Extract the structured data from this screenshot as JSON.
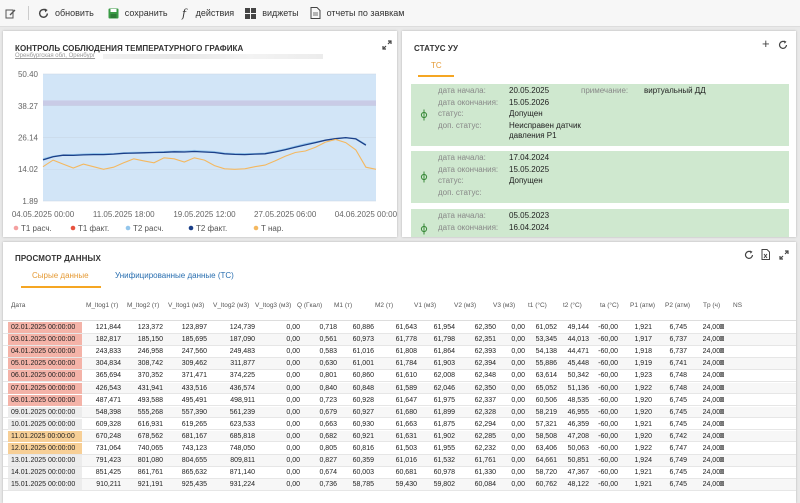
{
  "toolbar": {
    "items": [
      {
        "icon": "refresh-icon",
        "label": "обновить"
      },
      {
        "icon": "save-icon",
        "label": "сохранить"
      },
      {
        "icon": "function-icon",
        "label": "действия"
      },
      {
        "icon": "widgets-icon",
        "label": "виджеты"
      },
      {
        "icon": "report-icon",
        "label": "отчеты по заявкам"
      }
    ]
  },
  "chart_panel": {
    "title": "КОНТРОЛЬ СОБЛЮДЕНИЯ ТЕМПЕРАТУРНОГО ГРАФИКА",
    "subtitle": "Оренбургская обл, Оренбург"
  },
  "chart_data": {
    "type": "line",
    "title": "КОНТРОЛЬ СОБЛЮДЕНИЯ ТЕМПЕРАТУРНОГО ГРАФИКА",
    "y_ticks": [
      "50.40",
      "38.27",
      "26.14",
      "14.02",
      "1.89"
    ],
    "ylim": [
      1.89,
      50.4
    ],
    "x_ticks": [
      "04.05.2025 00:00",
      "11.05.2025 18:00",
      "19.05.2025 12:00",
      "27.05.2025 06:00",
      "04.06.2025 00:00"
    ],
    "x_range": [
      "04.05.2025 00:00",
      "06.06.2025 00:00"
    ],
    "band": [
      38.3,
      40.3
    ],
    "legend_placement": "bottom",
    "series": [
      {
        "name": "T1 расч.",
        "color": "#f4a0a0",
        "points": []
      },
      {
        "name": "T1 факт.",
        "color": "#e8533f",
        "points": []
      },
      {
        "name": "T2 расч.",
        "color": "#93c6ec",
        "points": [
          [
            0,
            18
          ],
          [
            1,
            19
          ],
          [
            2,
            19.5
          ],
          [
            3,
            19.6
          ],
          [
            4,
            19.8
          ],
          [
            5,
            20
          ],
          [
            6,
            20
          ],
          [
            7,
            20
          ],
          [
            8,
            20.3
          ],
          [
            9,
            20.5
          ],
          [
            10,
            20.5
          ],
          [
            11,
            20.6
          ],
          [
            12,
            20.8
          ],
          [
            13,
            21
          ],
          [
            14,
            21
          ],
          [
            15,
            21.2
          ],
          [
            16,
            21
          ],
          [
            17,
            20.8
          ],
          [
            18,
            20.2
          ],
          [
            19,
            20
          ],
          [
            20,
            20
          ],
          [
            21,
            20
          ],
          [
            22,
            20.2
          ],
          [
            23,
            21
          ],
          [
            24,
            21.8
          ],
          [
            25,
            22.8
          ],
          [
            26,
            23.8
          ],
          [
            27,
            24.5
          ],
          [
            28,
            25.2
          ],
          [
            29,
            25.8
          ],
          [
            30,
            26
          ],
          [
            31,
            25.8
          ],
          [
            32,
            23.5
          ]
        ]
      },
      {
        "name": "T2 факт.",
        "color": "#1b3f88",
        "points": [
          [
            0,
            17.6
          ],
          [
            1,
            18.8
          ],
          [
            2,
            19.4
          ],
          [
            3,
            19.3
          ],
          [
            4,
            19.5
          ],
          [
            5,
            19.6
          ],
          [
            6,
            19.6
          ],
          [
            7,
            19.8
          ],
          [
            8,
            20.1
          ],
          [
            9,
            20.2
          ],
          [
            10,
            20.3
          ],
          [
            11,
            20.4
          ],
          [
            12,
            20.5
          ],
          [
            13,
            20.7
          ],
          [
            14,
            20.6
          ],
          [
            15,
            20.8
          ],
          [
            16,
            20.6
          ],
          [
            17,
            20.4
          ],
          [
            18,
            19.9
          ],
          [
            19,
            19.7
          ],
          [
            20,
            19.6
          ],
          [
            21,
            19.8
          ],
          [
            22,
            19.9
          ],
          [
            23,
            20.6
          ],
          [
            24,
            21.5
          ],
          [
            25,
            22.4
          ],
          [
            26,
            23.3
          ],
          [
            27,
            24.2
          ],
          [
            28,
            25.1
          ],
          [
            29,
            25.7
          ],
          [
            30,
            26.1
          ],
          [
            31,
            25.6
          ],
          [
            32,
            23.2
          ]
        ]
      },
      {
        "name": "T нар.",
        "color": "#f4b860",
        "points": [
          [
            0,
            15
          ],
          [
            1,
            17.5
          ],
          [
            2,
            16
          ],
          [
            3,
            14.5
          ],
          [
            4,
            16
          ],
          [
            5,
            15
          ],
          [
            6,
            14
          ],
          [
            7,
            14.8
          ],
          [
            8,
            16.5
          ],
          [
            9,
            18
          ],
          [
            10,
            17.2
          ],
          [
            11,
            16.5
          ],
          [
            12,
            18.4
          ],
          [
            13,
            18
          ],
          [
            14,
            16.8
          ],
          [
            15,
            18.4
          ],
          [
            16,
            17.5
          ],
          [
            17,
            15.4
          ],
          [
            18,
            14.2
          ],
          [
            19,
            14
          ],
          [
            20,
            14.2
          ],
          [
            21,
            15
          ],
          [
            22,
            15.6
          ],
          [
            23,
            17.2
          ],
          [
            24,
            19
          ],
          [
            25,
            20.4
          ],
          [
            26,
            21
          ],
          [
            27,
            22.4
          ],
          [
            28,
            24.4
          ],
          [
            29,
            25.4
          ],
          [
            30,
            24.2
          ],
          [
            31,
            21.4
          ],
          [
            32,
            14.8
          ],
          [
            33,
            14
          ]
        ]
      }
    ]
  },
  "status_panel": {
    "title": "СТАТУС УУ",
    "tab": "ТС",
    "cards": [
      {
        "rows": [
          [
            "дата начала:",
            "20.05.2025"
          ],
          [
            "дата окончания:",
            "15.05.2026"
          ],
          [
            "статус:",
            "Допущен"
          ],
          [
            "доп. статус:",
            "Неисправен датчик давления P1"
          ]
        ],
        "note_label": "примечание:",
        "note_value": "виртуальный ДД"
      },
      {
        "rows": [
          [
            "дата начала:",
            "17.04.2024"
          ],
          [
            "дата окончания:",
            "15.05.2025"
          ],
          [
            "статус:",
            "Допущен"
          ],
          [
            "доп. статус:",
            ""
          ]
        ]
      },
      {
        "rows": [
          [
            "дата начала:",
            "05.05.2023"
          ],
          [
            "дата окончания:",
            "16.04.2024"
          ]
        ]
      }
    ]
  },
  "data_panel": {
    "title": "ПРОСМОТР ДАННЫХ",
    "tabs": [
      "Сырые данные",
      "Унифицированные данные (ТС)"
    ],
    "columns": [
      "Дата",
      "M_ltog1 (т)",
      "M_ltog2 (т)",
      "V_ltog1 (м3)",
      "V_ltog2 (м3)",
      "V_ltog3 (м3)",
      "Q (Гкал)",
      "M1 (т)",
      "M2 (т)",
      "V1 (м3)",
      "V2 (м3)",
      "V3 (м3)",
      "t1 (°C)",
      "t2 (°C)",
      "ta (°C)",
      "P1 (атм)",
      "P2 (атм)",
      "Tp (ч)",
      "NS"
    ],
    "rows": [
      {
        "hl": "red",
        "c": [
          "02.01.2025 00:00:00",
          "121,844",
          "123,372",
          "123,897",
          "124,739",
          "0,00",
          "0,718",
          "60,886",
          "61,643",
          "61,954",
          "62,350",
          "0,00",
          "61,052",
          "49,144",
          "-60,00",
          "1,921",
          "6,745",
          "24,000",
          "X"
        ]
      },
      {
        "hl": "red",
        "c": [
          "03.01.2025 00:00:00",
          "182,817",
          "185,150",
          "185,695",
          "187,090",
          "0,00",
          "0,561",
          "60,973",
          "61,778",
          "61,798",
          "62,351",
          "0,00",
          "53,345",
          "44,013",
          "-60,00",
          "1,917",
          "6,737",
          "24,000",
          "X"
        ]
      },
      {
        "hl": "red",
        "c": [
          "04.01.2025 00:00:00",
          "243,833",
          "246,958",
          "247,560",
          "249,483",
          "0,00",
          "0,583",
          "61,016",
          "61,808",
          "61,864",
          "62,393",
          "0,00",
          "54,138",
          "44,471",
          "-60,00",
          "1,918",
          "6,737",
          "24,000",
          "X"
        ]
      },
      {
        "hl": "red",
        "c": [
          "05.01.2025 00:00:00",
          "304,834",
          "308,742",
          "309,462",
          "311,877",
          "0,00",
          "0,630",
          "61,001",
          "61,784",
          "61,903",
          "62,394",
          "0,00",
          "55,886",
          "45,448",
          "-60,00",
          "1,919",
          "6,741",
          "24,000",
          "X"
        ]
      },
      {
        "hl": "red",
        "c": [
          "06.01.2025 00:00:00",
          "365,694",
          "370,352",
          "371,471",
          "374,225",
          "0,00",
          "0,801",
          "60,860",
          "61,610",
          "62,008",
          "62,348",
          "0,00",
          "63,614",
          "50,342",
          "-60,00",
          "1,923",
          "6,748",
          "24,000",
          "X"
        ]
      },
      {
        "hl": "red",
        "c": [
          "07.01.2025 00:00:00",
          "426,543",
          "431,941",
          "433,516",
          "436,574",
          "0,00",
          "0,840",
          "60,848",
          "61,589",
          "62,046",
          "62,350",
          "0,00",
          "65,052",
          "51,136",
          "-60,00",
          "1,922",
          "6,748",
          "24,000",
          "X"
        ]
      },
      {
        "hl": "red",
        "c": [
          "08.01.2025 00:00:00",
          "487,471",
          "493,588",
          "495,491",
          "498,911",
          "0,00",
          "0,723",
          "60,928",
          "61,647",
          "61,975",
          "62,337",
          "0,00",
          "60,506",
          "48,535",
          "-60,00",
          "1,920",
          "6,745",
          "24,000",
          "X"
        ]
      },
      {
        "hl": "",
        "c": [
          "09.01.2025 00:00:00",
          "548,398",
          "555,268",
          "557,390",
          "561,239",
          "0,00",
          "0,679",
          "60,927",
          "61,680",
          "61,899",
          "62,328",
          "0,00",
          "58,219",
          "46,955",
          "-60,00",
          "1,920",
          "6,745",
          "24,000",
          "X"
        ]
      },
      {
        "hl": "",
        "c": [
          "10.01.2025 00:00:00",
          "609,328",
          "616,931",
          "619,265",
          "623,533",
          "0,00",
          "0,663",
          "60,930",
          "61,663",
          "61,875",
          "62,294",
          "0,00",
          "57,321",
          "46,359",
          "-60,00",
          "1,921",
          "6,745",
          "24,000",
          "X"
        ]
      },
      {
        "hl": "orange",
        "c": [
          "11.01.2025 00:00:00",
          "670,248",
          "678,562",
          "681,167",
          "685,818",
          "0,00",
          "0,682",
          "60,921",
          "61,631",
          "61,902",
          "62,285",
          "0,00",
          "58,508",
          "47,208",
          "-60,00",
          "1,920",
          "6,742",
          "24,000",
          "X"
        ]
      },
      {
        "hl": "orange",
        "c": [
          "12.01.2025 00:00:00",
          "731,064",
          "740,065",
          "743,123",
          "748,050",
          "0,00",
          "0,805",
          "60,816",
          "61,503",
          "61,955",
          "62,232",
          "0,00",
          "63,406",
          "50,063",
          "-60,00",
          "1,922",
          "6,747",
          "24,000",
          "X"
        ]
      },
      {
        "hl": "",
        "c": [
          "13.01.2025 00:00:00",
          "791,423",
          "801,080",
          "804,655",
          "809,811",
          "0,00",
          "0,827",
          "60,359",
          "61,016",
          "61,532",
          "61,761",
          "0,00",
          "64,661",
          "50,851",
          "-60,00",
          "1,924",
          "6,749",
          "24,000",
          "X"
        ]
      },
      {
        "hl": "",
        "c": [
          "14.01.2025 00:00:00",
          "851,425",
          "861,761",
          "865,632",
          "871,140",
          "0,00",
          "0,674",
          "60,003",
          "60,681",
          "60,978",
          "61,330",
          "0,00",
          "58,720",
          "47,367",
          "-60,00",
          "1,921",
          "6,745",
          "24,000",
          "X"
        ]
      },
      {
        "hl": "",
        "c": [
          "15.01.2025 00:00:00",
          "910,211",
          "921,191",
          "925,435",
          "931,224",
          "0,00",
          "0,736",
          "58,785",
          "59,430",
          "59,802",
          "60,084",
          "0,00",
          "60,762",
          "48,122",
          "-60,00",
          "1,921",
          "6,745",
          "24,000",
          "X"
        ]
      }
    ]
  }
}
